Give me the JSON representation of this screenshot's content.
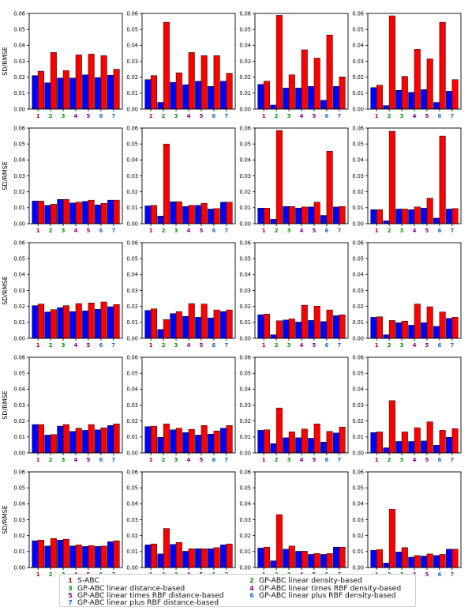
{
  "figure": {
    "ylabel": "SD/RMSE"
  },
  "colors": {
    "bar_blue": "#0000ff",
    "bar_red": "#ff0000",
    "tick_1": "#c00000",
    "tick_2": "#009900",
    "tick_3": "#009900",
    "tick_4": "#8b008b",
    "tick_5": "#8b008b",
    "tick_6": "#1e6ec8",
    "tick_7": "#1e6ec8"
  },
  "chart_data": [
    {
      "type": "bar",
      "row": 1,
      "col": 1,
      "categories": [
        "1",
        "2",
        "3",
        "4",
        "5",
        "6",
        "7"
      ],
      "series": [
        {
          "color": "blue",
          "values": [
            0.021,
            0.0165,
            0.0195,
            0.0195,
            0.0215,
            0.0198,
            0.0212
          ]
        },
        {
          "color": "red",
          "values": [
            0.0238,
            0.0355,
            0.0242,
            0.034,
            0.0345,
            0.0335,
            0.025
          ]
        }
      ],
      "ylim": [
        0,
        0.06
      ],
      "yticks": [
        "0.00",
        "0.01",
        "0.02",
        "0.03",
        "0.04",
        "0.05",
        "0.06"
      ],
      "ylabel": "SD/RMSE"
    },
    {
      "type": "bar",
      "row": 1,
      "col": 2,
      "categories": [
        "1",
        "2",
        "3",
        "4",
        "5",
        "6",
        "7"
      ],
      "series": [
        {
          "color": "blue",
          "values": [
            0.0185,
            0.0042,
            0.0168,
            0.0153,
            0.0175,
            0.0142,
            0.0175
          ]
        },
        {
          "color": "red",
          "values": [
            0.021,
            0.0545,
            0.0228,
            0.0355,
            0.0335,
            0.0335,
            0.0225
          ]
        }
      ],
      "ylim": [
        0,
        0.06
      ],
      "yticks": [
        "0.00",
        "0.01",
        "0.02",
        "0.03",
        "0.04",
        "0.05",
        "0.06"
      ]
    },
    {
      "type": "bar",
      "row": 1,
      "col": 3,
      "categories": [
        "1",
        "2",
        "3",
        "4",
        "5",
        "6",
        "7"
      ],
      "series": [
        {
          "color": "blue",
          "values": [
            0.0155,
            0.0025,
            0.0132,
            0.0132,
            0.0142,
            0.0055,
            0.0142
          ]
        },
        {
          "color": "red",
          "values": [
            0.0175,
            0.0588,
            0.0215,
            0.0372,
            0.032,
            0.0465,
            0.0202
          ]
        }
      ],
      "ylim": [
        0,
        0.06
      ],
      "yticks": [
        "0.00",
        "0.01",
        "0.02",
        "0.03",
        "0.04",
        "0.05",
        "0.06"
      ]
    },
    {
      "type": "bar",
      "row": 1,
      "col": 4,
      "categories": [
        "1",
        "2",
        "3",
        "4",
        "5",
        "6",
        "7"
      ],
      "series": [
        {
          "color": "blue",
          "values": [
            0.0135,
            0.0022,
            0.0118,
            0.0105,
            0.0122,
            0.0042,
            0.0112
          ]
        },
        {
          "color": "red",
          "values": [
            0.015,
            0.0585,
            0.0205,
            0.0375,
            0.0315,
            0.0545,
            0.0185
          ]
        }
      ],
      "ylim": [
        0,
        0.06
      ],
      "yticks": [
        "0.00",
        "0.01",
        "0.02",
        "0.03",
        "0.04",
        "0.05",
        "0.06"
      ]
    },
    {
      "type": "bar",
      "row": 2,
      "col": 1,
      "categories": [
        "1",
        "2",
        "3",
        "4",
        "5",
        "6",
        "7"
      ],
      "series": [
        {
          "color": "blue",
          "values": [
            0.0142,
            0.0115,
            0.0152,
            0.013,
            0.014,
            0.0118,
            0.0148
          ]
        },
        {
          "color": "red",
          "values": [
            0.0142,
            0.0122,
            0.0152,
            0.0135,
            0.0148,
            0.0128,
            0.0148
          ]
        }
      ],
      "ylim": [
        0,
        0.06
      ],
      "yticks": [
        "0.00",
        "0.01",
        "0.02",
        "0.03",
        "0.04",
        "0.05",
        "0.06"
      ],
      "ylabel": "SD/RMSE"
    },
    {
      "type": "bar",
      "row": 2,
      "col": 2,
      "categories": [
        "1",
        "2",
        "3",
        "4",
        "5",
        "6",
        "7"
      ],
      "series": [
        {
          "color": "blue",
          "values": [
            0.0112,
            0.0048,
            0.0138,
            0.0108,
            0.0115,
            0.0092,
            0.0135
          ]
        },
        {
          "color": "red",
          "values": [
            0.0115,
            0.05,
            0.0138,
            0.0115,
            0.0128,
            0.0095,
            0.0135
          ]
        }
      ],
      "ylim": [
        0,
        0.06
      ],
      "yticks": [
        "0.00",
        "0.01",
        "0.02",
        "0.03",
        "0.04",
        "0.05",
        "0.06"
      ]
    },
    {
      "type": "bar",
      "row": 2,
      "col": 3,
      "categories": [
        "1",
        "2",
        "3",
        "4",
        "5",
        "6",
        "7"
      ],
      "series": [
        {
          "color": "blue",
          "values": [
            0.0098,
            0.0028,
            0.0108,
            0.0098,
            0.0105,
            0.0052,
            0.0105
          ]
        },
        {
          "color": "red",
          "values": [
            0.0098,
            0.0585,
            0.0108,
            0.0105,
            0.0135,
            0.0455,
            0.0108
          ]
        }
      ],
      "ylim": [
        0,
        0.06
      ],
      "yticks": [
        "0.00",
        "0.01",
        "0.02",
        "0.03",
        "0.04",
        "0.05",
        "0.06"
      ]
    },
    {
      "type": "bar",
      "row": 2,
      "col": 4,
      "categories": [
        "1",
        "2",
        "3",
        "4",
        "5",
        "6",
        "7"
      ],
      "series": [
        {
          "color": "blue",
          "values": [
            0.0088,
            0.0018,
            0.0092,
            0.0088,
            0.0098,
            0.0035,
            0.0092
          ]
        },
        {
          "color": "red",
          "values": [
            0.0088,
            0.058,
            0.0092,
            0.0105,
            0.016,
            0.055,
            0.0095
          ]
        }
      ],
      "ylim": [
        0,
        0.06
      ],
      "yticks": [
        "0.00",
        "0.01",
        "0.02",
        "0.03",
        "0.04",
        "0.05",
        "0.06"
      ]
    },
    {
      "type": "bar",
      "row": 3,
      "col": 1,
      "categories": [
        "1",
        "2",
        "3",
        "4",
        "5",
        "6",
        "7"
      ],
      "series": [
        {
          "color": "blue",
          "values": [
            0.0205,
            0.0165,
            0.0192,
            0.0168,
            0.0172,
            0.0182,
            0.0198
          ]
        },
        {
          "color": "red",
          "values": [
            0.0215,
            0.018,
            0.0205,
            0.0218,
            0.0222,
            0.0228,
            0.0212
          ]
        }
      ],
      "ylim": [
        0,
        0.06
      ],
      "yticks": [
        "0.00",
        "0.01",
        "0.02",
        "0.03",
        "0.04",
        "0.05",
        "0.06"
      ],
      "ylabel": "SD/RMSE"
    },
    {
      "type": "bar",
      "row": 3,
      "col": 2,
      "categories": [
        "1",
        "2",
        "3",
        "4",
        "5",
        "6",
        "7"
      ],
      "series": [
        {
          "color": "blue",
          "values": [
            0.0175,
            0.0055,
            0.0155,
            0.0138,
            0.0132,
            0.0128,
            0.0168
          ]
        },
        {
          "color": "red",
          "values": [
            0.0185,
            0.0118,
            0.0168,
            0.0218,
            0.0215,
            0.0178,
            0.0178
          ]
        }
      ],
      "ylim": [
        0,
        0.06
      ],
      "yticks": [
        "0.00",
        "0.01",
        "0.02",
        "0.03",
        "0.04",
        "0.05",
        "0.06"
      ]
    },
    {
      "type": "bar",
      "row": 3,
      "col": 3,
      "categories": [
        "1",
        "2",
        "3",
        "4",
        "5",
        "6",
        "7"
      ],
      "series": [
        {
          "color": "blue",
          "values": [
            0.0148,
            0.0022,
            0.0115,
            0.0102,
            0.0112,
            0.0105,
            0.0142
          ]
        },
        {
          "color": "red",
          "values": [
            0.0152,
            0.011,
            0.0122,
            0.0208,
            0.0202,
            0.0178,
            0.0148
          ]
        }
      ],
      "ylim": [
        0,
        0.06
      ],
      "yticks": [
        "0.00",
        "0.01",
        "0.02",
        "0.03",
        "0.04",
        "0.05",
        "0.06"
      ]
    },
    {
      "type": "bar",
      "row": 3,
      "col": 4,
      "categories": [
        "1",
        "2",
        "3",
        "4",
        "5",
        "6",
        "7"
      ],
      "series": [
        {
          "color": "blue",
          "values": [
            0.0132,
            0.0022,
            0.0098,
            0.0082,
            0.0098,
            0.0075,
            0.0125
          ]
        },
        {
          "color": "red",
          "values": [
            0.0135,
            0.0112,
            0.0108,
            0.0215,
            0.0198,
            0.0165,
            0.0132
          ]
        }
      ],
      "ylim": [
        0,
        0.06
      ],
      "yticks": [
        "0.00",
        "0.01",
        "0.02",
        "0.03",
        "0.04",
        "0.05",
        "0.06"
      ]
    },
    {
      "type": "bar",
      "row": 4,
      "col": 1,
      "categories": [
        "1",
        "2",
        "3",
        "4",
        "5",
        "6",
        "7"
      ],
      "series": [
        {
          "color": "blue",
          "values": [
            0.0178,
            0.0112,
            0.0168,
            0.0135,
            0.0142,
            0.0145,
            0.0172
          ]
        },
        {
          "color": "red",
          "values": [
            0.0178,
            0.0115,
            0.0178,
            0.0155,
            0.0178,
            0.0158,
            0.0182
          ]
        }
      ],
      "ylim": [
        0,
        0.06
      ],
      "yticks": [
        "0.00",
        "0.01",
        "0.02",
        "0.03",
        "0.04",
        "0.05",
        "0.06"
      ],
      "ylabel": "SD/RMSE"
    },
    {
      "type": "bar",
      "row": 4,
      "col": 2,
      "categories": [
        "1",
        "2",
        "3",
        "4",
        "5",
        "6",
        "7"
      ],
      "series": [
        {
          "color": "blue",
          "values": [
            0.0165,
            0.0098,
            0.0145,
            0.0128,
            0.0112,
            0.0118,
            0.0155
          ]
        },
        {
          "color": "red",
          "values": [
            0.0168,
            0.0182,
            0.0155,
            0.0148,
            0.0172,
            0.0138,
            0.0172
          ]
        }
      ],
      "ylim": [
        0,
        0.06
      ],
      "yticks": [
        "0.00",
        "0.01",
        "0.02",
        "0.03",
        "0.04",
        "0.05",
        "0.06"
      ]
    },
    {
      "type": "bar",
      "row": 4,
      "col": 3,
      "categories": [
        "1",
        "2",
        "3",
        "4",
        "5",
        "6",
        "7"
      ],
      "series": [
        {
          "color": "blue",
          "values": [
            0.0142,
            0.0058,
            0.0095,
            0.0095,
            0.0092,
            0.0068,
            0.0125
          ]
        },
        {
          "color": "red",
          "values": [
            0.0145,
            0.0282,
            0.0132,
            0.015,
            0.0182,
            0.0135,
            0.0162
          ]
        }
      ],
      "ylim": [
        0,
        0.06
      ],
      "yticks": [
        "0.00",
        "0.01",
        "0.02",
        "0.03",
        "0.04",
        "0.05",
        "0.06"
      ]
    },
    {
      "type": "bar",
      "row": 4,
      "col": 4,
      "categories": [
        "1",
        "2",
        "3",
        "4",
        "5",
        "6",
        "7"
      ],
      "series": [
        {
          "color": "blue",
          "values": [
            0.0128,
            0.0032,
            0.0072,
            0.0072,
            0.0075,
            0.0048,
            0.0098
          ]
        },
        {
          "color": "red",
          "values": [
            0.0132,
            0.0328,
            0.0132,
            0.0158,
            0.0195,
            0.0142,
            0.0152
          ]
        }
      ],
      "ylim": [
        0,
        0.06
      ],
      "yticks": [
        "0.00",
        "0.01",
        "0.02",
        "0.03",
        "0.04",
        "0.05",
        "0.06"
      ]
    },
    {
      "type": "bar",
      "row": 5,
      "col": 1,
      "categories": [
        "1",
        "2",
        "3",
        "4",
        "5",
        "6",
        "7"
      ],
      "series": [
        {
          "color": "blue",
          "values": [
            0.0168,
            0.0135,
            0.0172,
            0.0135,
            0.0132,
            0.0132,
            0.0162
          ]
        },
        {
          "color": "red",
          "values": [
            0.0172,
            0.0182,
            0.0178,
            0.0142,
            0.0138,
            0.0135,
            0.0168
          ]
        }
      ],
      "ylim": [
        0,
        0.06
      ],
      "yticks": [
        "0.00",
        "0.01",
        "0.02",
        "0.03",
        "0.04",
        "0.05",
        "0.06"
      ],
      "ylabel": "SD/RMSE"
    },
    {
      "type": "bar",
      "row": 5,
      "col": 2,
      "categories": [
        "1",
        "2",
        "3",
        "4",
        "5",
        "6",
        "7"
      ],
      "series": [
        {
          "color": "blue",
          "values": [
            0.0142,
            0.0085,
            0.0145,
            0.0102,
            0.0118,
            0.0118,
            0.0142
          ]
        },
        {
          "color": "red",
          "values": [
            0.0148,
            0.0245,
            0.0158,
            0.0118,
            0.0118,
            0.0125,
            0.0148
          ]
        }
      ],
      "ylim": [
        0,
        0.06
      ],
      "yticks": [
        "0.00",
        "0.01",
        "0.02",
        "0.03",
        "0.04",
        "0.05",
        "0.06"
      ]
    },
    {
      "type": "bar",
      "row": 5,
      "col": 3,
      "categories": [
        "1",
        "2",
        "3",
        "4",
        "5",
        "6",
        "7"
      ],
      "series": [
        {
          "color": "blue",
          "values": [
            0.0122,
            0.0042,
            0.0115,
            0.0102,
            0.0082,
            0.0082,
            0.0128
          ]
        },
        {
          "color": "red",
          "values": [
            0.0128,
            0.0332,
            0.0135,
            0.0102,
            0.0088,
            0.0088,
            0.0128
          ]
        }
      ],
      "ylim": [
        0,
        0.06
      ],
      "yticks": [
        "0.00",
        "0.01",
        "0.02",
        "0.03",
        "0.04",
        "0.05",
        "0.06"
      ]
    },
    {
      "type": "bar",
      "row": 5,
      "col": 4,
      "categories": [
        "1",
        "2",
        "3",
        "4",
        "5",
        "6",
        "7"
      ],
      "series": [
        {
          "color": "blue",
          "values": [
            0.0108,
            0.0028,
            0.0098,
            0.0065,
            0.0072,
            0.0075,
            0.0115
          ]
        },
        {
          "color": "red",
          "values": [
            0.0112,
            0.0365,
            0.0125,
            0.0075,
            0.0085,
            0.0082,
            0.0115
          ]
        }
      ],
      "ylim": [
        0,
        0.06
      ],
      "yticks": [
        "0.00",
        "0.01",
        "0.02",
        "0.03",
        "0.04",
        "0.05",
        "0.06"
      ]
    }
  ],
  "legend": {
    "items": [
      {
        "num": "1",
        "label": "S-ABC"
      },
      {
        "num": "2",
        "label": "GP-ABC linear density-based"
      },
      {
        "num": "3",
        "label": "GP-ABC linear distance-based"
      },
      {
        "num": "4",
        "label": "GP-ABC linear times RBF density-based"
      },
      {
        "num": "5",
        "label": "GP-ABC linear times RBF distance-based"
      },
      {
        "num": "6",
        "label": "GP-ABC linear plus RBF density-based"
      },
      {
        "num": "7",
        "label": "GP-ABC linear plus RBF distance-based"
      }
    ]
  }
}
